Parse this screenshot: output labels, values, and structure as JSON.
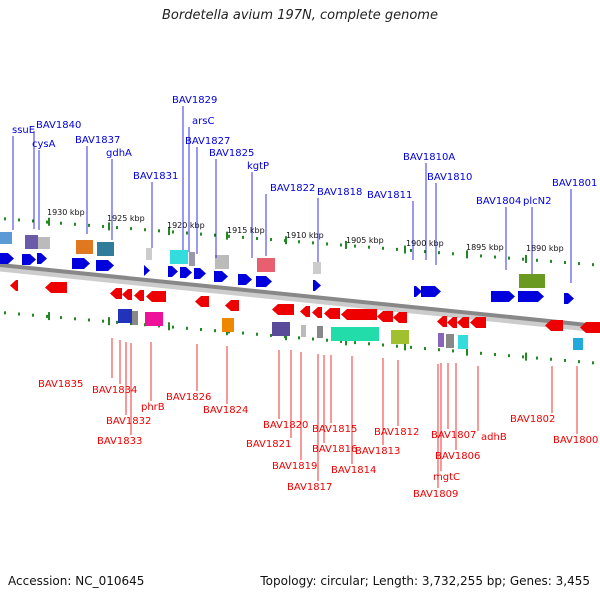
{
  "title": "Bordetella avium 197N, complete genome",
  "footer": {
    "accession": "Accession: NC_010645",
    "stats": "Topology: circular; Length: 3,732,255 bp; Genes: 3,455"
  },
  "colors": {
    "forward": "#0000dd",
    "reverse": "#ee0000",
    "backbone": "#888888",
    "tick": "#228822"
  },
  "scale_labels": [
    "1930 kbp",
    "1925 kbp",
    "1920 kbp",
    "1915 kbp",
    "1910 kbp",
    "1905 kbp",
    "1900 kbp",
    "1895 kbp",
    "1890 kbp"
  ],
  "forward_labels": [
    "ssuE",
    "BAV1840",
    "cysA",
    "BAV1837",
    "gdhA",
    "BAV1831",
    "BAV1829",
    "arsC",
    "BAV1827",
    "BAV1825",
    "kgtP",
    "BAV1822",
    "BAV1818",
    "BAV1811",
    "BAV1810A",
    "BAV1810",
    "BAV1804",
    "plcN2",
    "BAV1801"
  ],
  "reverse_labels": [
    "BAV1835",
    "BAV1834",
    "BAV1832",
    "BAV1833",
    "phrB",
    "BAV1826",
    "BAV1824",
    "BAV1820",
    "BAV1821",
    "BAV1819",
    "BAV1817",
    "BAV1815",
    "BAV1816",
    "BAV1814",
    "BAV1813",
    "BAV1812",
    "BAV1807",
    "BAV1806",
    "mgtC",
    "BAV1809",
    "adhB",
    "BAV1802",
    "BAV1800"
  ]
}
